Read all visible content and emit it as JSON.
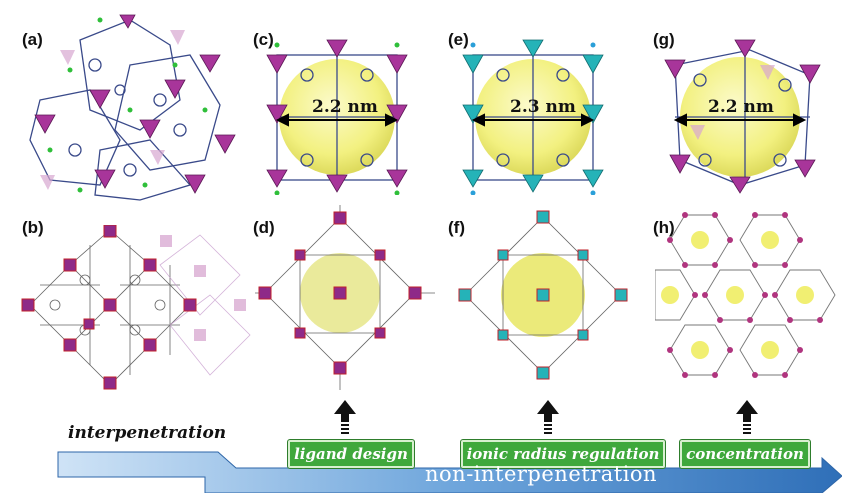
{
  "panels": {
    "a": "(a)",
    "b": "(b)",
    "c": "(c)",
    "d": "(d)",
    "e": "(e)",
    "f": "(f)",
    "g": "(g)",
    "h": "(h)"
  },
  "dimensions": {
    "c": "2.2 nm",
    "e": "2.3 nm",
    "g": "2.2 nm"
  },
  "labels": {
    "interpenetration": "interpenetration",
    "non_interpenetration": "non-interpenetration",
    "ligand_design": "ligand design",
    "ionic_radius_regulation": "ionic radius regulation",
    "concentration": "concentration"
  },
  "colors": {
    "magenta_node": "#a8359a",
    "cyan_node": "#25b3b8",
    "yellow_sphere": "#f1ef72",
    "arrow_blue": "#4f8fd0",
    "tag_green": "#3fa83c"
  }
}
